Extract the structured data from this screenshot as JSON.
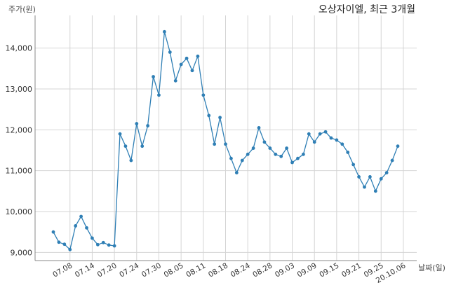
{
  "colors": {
    "line": "#2f7fb5",
    "grid": "#d4d4d4",
    "background": "#ffffff"
  },
  "chart_data": {
    "type": "line",
    "title": "오상자이엘, 최근 3개월",
    "ylabel": "주가(원)",
    "xlabel": "날짜(일)",
    "ylim": [
      8800,
      14800
    ],
    "yticks": [
      9000,
      10000,
      11000,
      12000,
      13000,
      14000
    ],
    "ytick_labels": [
      "9,000",
      "10,000",
      "11,000",
      "12,000",
      "13,000",
      "14,000"
    ],
    "grid": true,
    "xtick_labels": [
      "07.08",
      "07.14",
      "07.20",
      "07.24",
      "07.30",
      "08.05",
      "08.11",
      "08.18",
      "08.24",
      "08.28",
      "09.03",
      "09.09",
      "09.15",
      "09.21",
      "09.25",
      "20.10.06"
    ],
    "xtick_positions": [
      3,
      7,
      11,
      15,
      19,
      23,
      27,
      31,
      35,
      39,
      43,
      47,
      51,
      55,
      59,
      63
    ],
    "series": [
      {
        "values": [
          9500,
          9250,
          9200,
          9070,
          9650,
          9880,
          9600,
          9350,
          9190,
          9240,
          9180,
          9160,
          11900,
          11600,
          11250,
          12150,
          11600,
          12100,
          13300,
          12850,
          14400,
          13900,
          13200,
          13600,
          13750,
          13450,
          13800,
          12850,
          12350,
          11650,
          12300,
          11650,
          11300,
          10950,
          11250,
          11400,
          11550,
          12050,
          11700,
          11550,
          11400,
          11350,
          11550,
          11200,
          11300,
          11400,
          11900,
          11700,
          11900,
          11950,
          11800,
          11750,
          11650,
          11450,
          11150,
          10850,
          10600,
          10850,
          10500,
          10800,
          10950,
          11250,
          11600
        ]
      }
    ]
  }
}
